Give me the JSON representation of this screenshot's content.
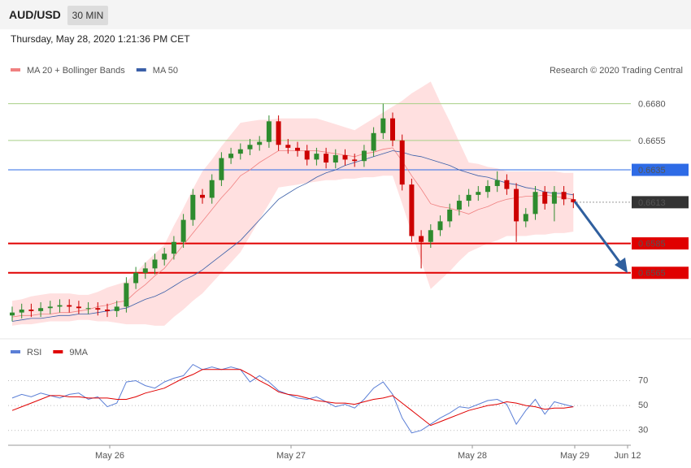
{
  "header": {
    "symbol": "AUD/USD",
    "timeframe": "30 MIN",
    "datetime": "Thursday, May 28, 2020 1:21:36 PM CET"
  },
  "chart_data": [
    {
      "type": "candlestick",
      "source": "Research © 2020 Trading Central",
      "ylim": [
        0.6524,
        0.6698
      ],
      "up_color": "#2e8b2e",
      "down_color": "#cc0000",
      "open": [
        0.6536,
        0.6538,
        0.654,
        0.6539,
        0.6541,
        0.6542,
        0.6543,
        0.6542,
        0.6541,
        0.6541,
        0.654,
        0.6539,
        0.6542,
        0.6558,
        0.6565,
        0.6568,
        0.6574,
        0.6578,
        0.6586,
        0.6601,
        0.6618,
        0.6616,
        0.6628,
        0.6643,
        0.6646,
        0.6649,
        0.6652,
        0.6654,
        0.6668,
        0.6652,
        0.665,
        0.6648,
        0.6642,
        0.6646,
        0.664,
        0.6645,
        0.6642,
        0.6641,
        0.6648,
        0.666,
        0.667,
        0.6655,
        0.6625,
        0.659,
        0.6586,
        0.6594,
        0.66,
        0.6608,
        0.6614,
        0.6618,
        0.662,
        0.6624,
        0.6628,
        0.6622,
        0.66,
        0.6605,
        0.662,
        0.6612,
        0.662,
        0.6615
      ],
      "high": [
        0.6542,
        0.6544,
        0.6544,
        0.6545,
        0.6546,
        0.6547,
        0.6547,
        0.6546,
        0.6545,
        0.6545,
        0.6544,
        0.6546,
        0.6562,
        0.6569,
        0.6572,
        0.6578,
        0.6582,
        0.659,
        0.6605,
        0.6622,
        0.6622,
        0.6632,
        0.6647,
        0.665,
        0.6653,
        0.6656,
        0.6658,
        0.6672,
        0.6672,
        0.6656,
        0.6654,
        0.6652,
        0.665,
        0.665,
        0.6649,
        0.6649,
        0.6646,
        0.6652,
        0.6664,
        0.668,
        0.6674,
        0.6659,
        0.6629,
        0.6594,
        0.6598,
        0.6604,
        0.6612,
        0.6618,
        0.6622,
        0.6624,
        0.6628,
        0.6634,
        0.6632,
        0.6626,
        0.6609,
        0.6624,
        0.6624,
        0.6624,
        0.6624,
        0.6619
      ],
      "low": [
        0.6532,
        0.6534,
        0.6535,
        0.6535,
        0.6537,
        0.6538,
        0.6538,
        0.6537,
        0.6537,
        0.6536,
        0.6535,
        0.6535,
        0.6538,
        0.6554,
        0.6561,
        0.6564,
        0.657,
        0.6574,
        0.6582,
        0.6597,
        0.6612,
        0.6612,
        0.6624,
        0.6639,
        0.6642,
        0.6645,
        0.6648,
        0.665,
        0.6648,
        0.6646,
        0.6644,
        0.6638,
        0.6638,
        0.6636,
        0.6636,
        0.6638,
        0.6637,
        0.6637,
        0.6644,
        0.6656,
        0.6651,
        0.6621,
        0.6586,
        0.6568,
        0.6582,
        0.659,
        0.6596,
        0.6604,
        0.661,
        0.6614,
        0.6616,
        0.662,
        0.6618,
        0.6586,
        0.6596,
        0.6601,
        0.6608,
        0.66,
        0.6611,
        0.6609
      ],
      "close": [
        0.6538,
        0.654,
        0.6539,
        0.6541,
        0.6542,
        0.6543,
        0.6542,
        0.6541,
        0.6541,
        0.654,
        0.6539,
        0.6542,
        0.6558,
        0.6565,
        0.6568,
        0.6574,
        0.6578,
        0.6586,
        0.6601,
        0.6618,
        0.6616,
        0.6628,
        0.6643,
        0.6646,
        0.6649,
        0.6652,
        0.6654,
        0.6668,
        0.6652,
        0.665,
        0.6648,
        0.6642,
        0.6646,
        0.664,
        0.6645,
        0.6642,
        0.6641,
        0.6648,
        0.666,
        0.667,
        0.6655,
        0.6625,
        0.659,
        0.6586,
        0.6594,
        0.66,
        0.6608,
        0.6614,
        0.6618,
        0.662,
        0.6624,
        0.6628,
        0.6622,
        0.66,
        0.6605,
        0.662,
        0.6612,
        0.662,
        0.6615,
        0.6613
      ],
      "series": [
        {
          "name": "MA 20 + Bollinger Bands",
          "color": "#f08080",
          "band_color": "#ffe0e0",
          "values": [
            0.6535,
            0.6536,
            0.6536,
            0.6537,
            0.6537,
            0.6538,
            0.6538,
            0.6539,
            0.654,
            0.6542,
            0.6543,
            0.6545,
            0.6546,
            0.6552,
            0.6557,
            0.6563,
            0.6568,
            0.6576,
            0.6584,
            0.6592,
            0.66,
            0.6608,
            0.6616,
            0.6623,
            0.6631,
            0.6635,
            0.664,
            0.6644,
            0.6648,
            0.6648,
            0.6648,
            0.6648,
            0.6648,
            0.6647,
            0.6646,
            0.6645,
            0.6644,
            0.6646,
            0.6647,
            0.6649,
            0.665,
            0.6641,
            0.6631,
            0.6622,
            0.6612,
            0.661,
            0.6609,
            0.6607,
            0.6605,
            0.6608,
            0.661,
            0.6613,
            0.6615,
            0.6616,
            0.6617,
            0.6617,
            0.6618,
            0.6617,
            0.6616,
            0.6615
          ],
          "upper": [
            0.6546,
            0.6547,
            0.6549,
            0.655,
            0.6551,
            0.6551,
            0.6551,
            0.655,
            0.655,
            0.6552,
            0.6555,
            0.6557,
            0.6559,
            0.6565,
            0.6572,
            0.6578,
            0.6584,
            0.6597,
            0.6609,
            0.6622,
            0.6634,
            0.6642,
            0.6651,
            0.6659,
            0.6667,
            0.6668,
            0.6669,
            0.6669,
            0.667,
            0.667,
            0.667,
            0.667,
            0.667,
            0.6668,
            0.6666,
            0.6664,
            0.6662,
            0.6666,
            0.667,
            0.6674,
            0.6678,
            0.6682,
            0.6687,
            0.6691,
            0.6695,
            0.6681,
            0.6668,
            0.6654,
            0.664,
            0.6639,
            0.6637,
            0.6636,
            0.6634,
            0.6634,
            0.6634,
            0.6634,
            0.6634,
            0.6634,
            0.6633,
            0.6633
          ],
          "lower": [
            0.6529,
            0.653,
            0.653,
            0.6531,
            0.6532,
            0.6532,
            0.6532,
            0.6533,
            0.6533,
            0.6532,
            0.6532,
            0.6531,
            0.653,
            0.653,
            0.653,
            0.6529,
            0.6529,
            0.6535,
            0.654,
            0.6546,
            0.6551,
            0.6558,
            0.6565,
            0.6572,
            0.6579,
            0.659,
            0.6601,
            0.6612,
            0.6623,
            0.6624,
            0.6625,
            0.6626,
            0.6627,
            0.6628,
            0.6628,
            0.6629,
            0.6629,
            0.663,
            0.663,
            0.6631,
            0.6631,
            0.6612,
            0.6592,
            0.6573,
            0.6554,
            0.656,
            0.6566,
            0.6573,
            0.6579,
            0.6582,
            0.6585,
            0.6587,
            0.659,
            0.659,
            0.659,
            0.6591,
            0.6591,
            0.6592,
            0.6592,
            0.6593
          ]
        },
        {
          "name": "MA 50",
          "color": "#3a5fa8",
          "values": [
            0.6532,
            0.6533,
            0.6534,
            0.6534,
            0.6535,
            0.6536,
            0.6536,
            0.6537,
            0.6537,
            0.6538,
            0.6539,
            0.654,
            0.6541,
            0.6544,
            0.6547,
            0.6549,
            0.6552,
            0.6556,
            0.656,
            0.6563,
            0.6567,
            0.6572,
            0.6577,
            0.6582,
            0.6587,
            0.6594,
            0.6601,
            0.6608,
            0.6615,
            0.6619,
            0.6623,
            0.6626,
            0.663,
            0.6633,
            0.6635,
            0.6638,
            0.664,
            0.6642,
            0.6644,
            0.6646,
            0.6648,
            0.6647,
            0.6645,
            0.6644,
            0.6642,
            0.664,
            0.6638,
            0.6635,
            0.6633,
            0.6631,
            0.663,
            0.6628,
            0.6626,
            0.6625,
            0.6623,
            0.6622,
            0.662,
            0.6619,
            0.6619,
            0.6618
          ]
        }
      ],
      "levels": [
        {
          "value": 0.668,
          "label": "0.6680",
          "color": "#a8cf86",
          "boxed": false
        },
        {
          "value": 0.6655,
          "label": "0.6655",
          "color": "#a8cf86",
          "boxed": false
        },
        {
          "value": 0.6635,
          "label": "0.6635",
          "color": "#2e6be6",
          "boxed": true
        },
        {
          "value": 0.6613,
          "label": "0.6613",
          "color": "#333333",
          "boxed": true,
          "dotted": true
        },
        {
          "value": 0.6585,
          "label": "0.6585",
          "color": "#e00000",
          "boxed": true
        },
        {
          "value": 0.6565,
          "label": "0.6565",
          "color": "#e00000",
          "boxed": true
        }
      ]
    },
    {
      "type": "line",
      "ylim": [
        20,
        88
      ],
      "yticks": [
        30,
        50,
        70
      ],
      "grid": true,
      "x_labels": [
        "May 26",
        "May 27",
        "May 28",
        "May 29",
        "Jun 12"
      ],
      "series": [
        {
          "name": "RSI",
          "color": "#5b7fd6",
          "values": [
            56,
            59,
            57,
            60,
            58,
            56,
            59,
            60,
            55,
            57,
            49,
            52,
            69,
            70,
            66,
            64,
            69,
            72,
            74,
            83,
            79,
            81,
            79,
            81,
            79,
            69,
            74,
            69,
            62,
            59,
            56,
            55,
            57,
            53,
            49,
            51,
            48,
            55,
            64,
            69,
            59,
            40,
            28,
            30,
            35,
            40,
            44,
            49,
            48,
            51,
            54,
            55,
            51,
            35,
            46,
            55,
            43,
            53,
            51,
            49
          ]
        },
        {
          "name": "9MA",
          "color": "#e00000",
          "values": [
            46,
            49,
            52,
            55,
            58,
            58,
            57,
            57,
            56,
            56,
            56,
            55,
            55,
            57,
            60,
            62,
            64,
            68,
            72,
            75,
            79,
            79,
            79,
            79,
            79,
            75,
            70,
            66,
            61,
            59,
            58,
            56,
            54,
            53,
            52,
            52,
            51,
            53,
            55,
            56,
            58,
            52,
            46,
            40,
            34,
            37,
            40,
            43,
            46,
            48,
            50,
            51,
            53,
            52,
            50,
            49,
            47,
            48,
            48,
            49
          ]
        }
      ]
    }
  ]
}
